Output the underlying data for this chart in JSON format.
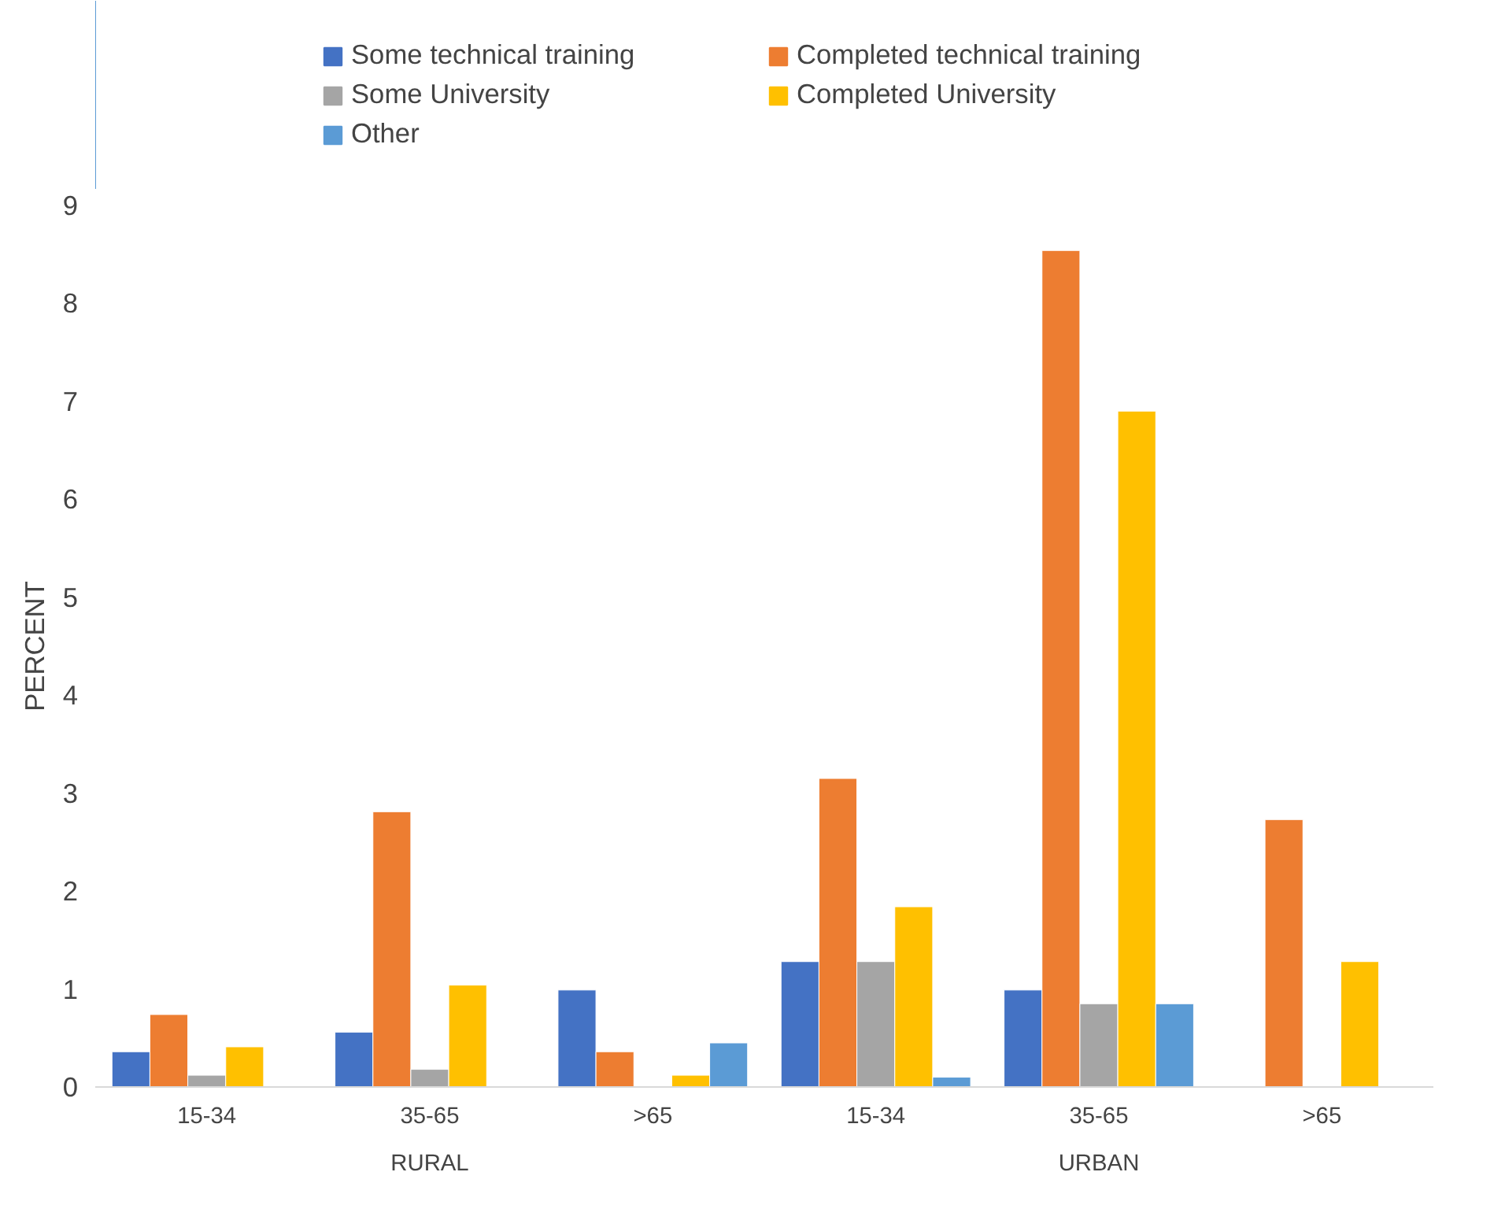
{
  "chart_data": {
    "type": "bar",
    "ylabel": "PERCENT",
    "categories": [
      "15-34",
      "35-65",
      ">65",
      "15-34",
      "35-65",
      ">65"
    ],
    "annotations": [
      "RURAL",
      "URBAN"
    ],
    "series": [
      {
        "name": "Some technical training",
        "color": "#4472c4",
        "values": [
          0.36,
          0.56,
          0.99,
          1.28,
          0.99,
          null
        ]
      },
      {
        "name": "Completed technical training",
        "color": "#ed7d31",
        "values": [
          0.74,
          2.81,
          0.36,
          3.15,
          8.54,
          2.73
        ]
      },
      {
        "name": "Some University",
        "color": "#a5a5a5",
        "values": [
          0.12,
          0.18,
          null,
          1.28,
          0.85,
          null
        ]
      },
      {
        "name": "Completed University",
        "color": "#ffc000",
        "values": [
          0.41,
          1.04,
          0.12,
          1.84,
          6.9,
          1.28
        ]
      },
      {
        "name": "Other",
        "color": "#5b9bd5",
        "values": [
          null,
          null,
          0.45,
          0.1,
          0.85,
          null
        ]
      }
    ],
    "ylim": [
      0,
      9
    ],
    "yticks": [
      0,
      1,
      2,
      3,
      4,
      5,
      6,
      7,
      8,
      9
    ],
    "grid": false,
    "legend": "top"
  }
}
